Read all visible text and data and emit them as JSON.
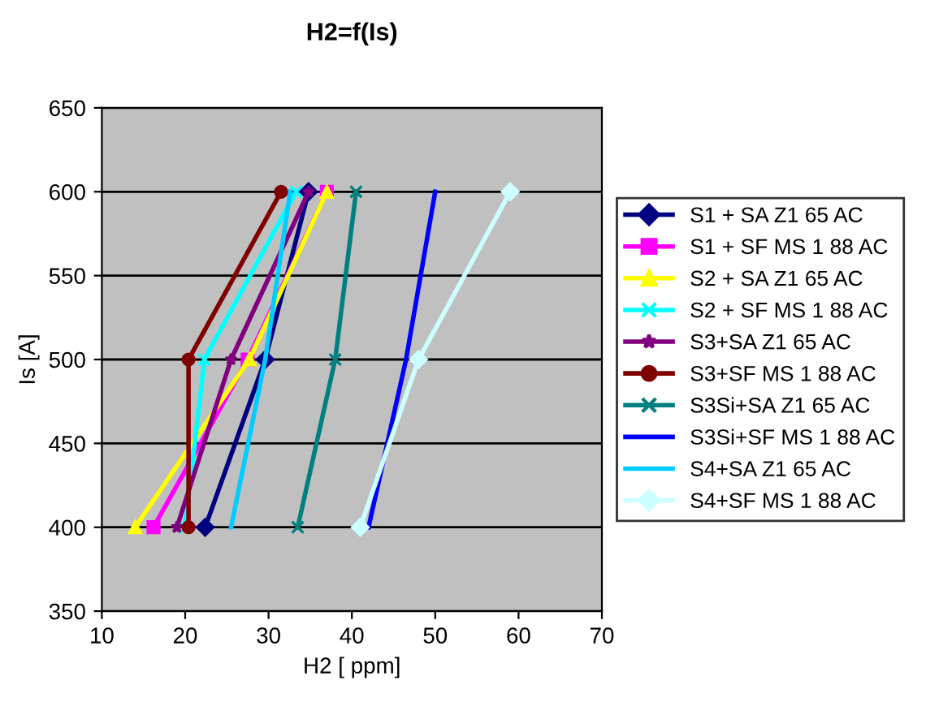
{
  "chart_data": {
    "type": "line",
    "title": "H2=f(Is)",
    "xlabel": "H2 [ ppm]",
    "ylabel": "Is [A]",
    "xlim": [
      10,
      70
    ],
    "xticks": [
      10,
      20,
      30,
      40,
      50,
      60,
      70
    ],
    "ylim": [
      350,
      650
    ],
    "yticks": [
      350,
      400,
      450,
      500,
      550,
      600,
      650
    ],
    "grid": "y",
    "legend": "right",
    "series": [
      {
        "name": "S1 + SA Z1 65 AC",
        "color": "#000080",
        "marker": "diamond",
        "x": [
          22.4,
          29.6,
          34.8
        ],
        "values": [
          400,
          500,
          600
        ]
      },
      {
        "name": "S1 + SF MS 1 88 AC",
        "color": "#ff00ff",
        "marker": "square",
        "x": [
          16.2,
          27.5,
          37
        ],
        "values": [
          400,
          500,
          600
        ]
      },
      {
        "name": "S2 + SA Z1 65 AC",
        "color": "#ffff00",
        "marker": "triangle",
        "x": [
          14,
          27.7,
          37
        ],
        "values": [
          400,
          500,
          600
        ]
      },
      {
        "name": "S2 + SF MS 1 88 AC",
        "color": "#00ffff",
        "marker": "cross",
        "x": [
          20,
          22.3,
          33.3
        ],
        "values": [
          400,
          500,
          600
        ]
      },
      {
        "name": "S3+SA Z1 65 AC",
        "color": "#800080",
        "marker": "star",
        "x": [
          19,
          25.5,
          34.8
        ],
        "values": [
          400,
          500,
          600
        ]
      },
      {
        "name": "S3+SF MS 1 88 AC",
        "color": "#800000",
        "marker": "circle",
        "x": [
          20.4,
          20.4,
          31.5
        ],
        "values": [
          400,
          500,
          600
        ]
      },
      {
        "name": "S3Si+SA Z1 65 AC",
        "color": "#008080",
        "marker": "cross",
        "x": [
          33.5,
          38,
          40.5
        ],
        "values": [
          400,
          500,
          600
        ]
      },
      {
        "name": "S3Si+SF MS 1 88 AC",
        "color": "#0000ff",
        "marker": "none",
        "x": [
          42,
          46.5,
          50
        ],
        "values": [
          400,
          500,
          600
        ]
      },
      {
        "name": "S4+SA Z1 65 AC",
        "color": "#00ccff",
        "marker": "none",
        "x": [
          25.5,
          29.6,
          32.6
        ],
        "values": [
          400,
          500,
          600
        ]
      },
      {
        "name": "S4+SF MS 1 88 AC",
        "color": "#ccffff",
        "marker": "diamond",
        "x": [
          41,
          48,
          59
        ],
        "values": [
          400,
          500,
          600
        ]
      }
    ]
  }
}
